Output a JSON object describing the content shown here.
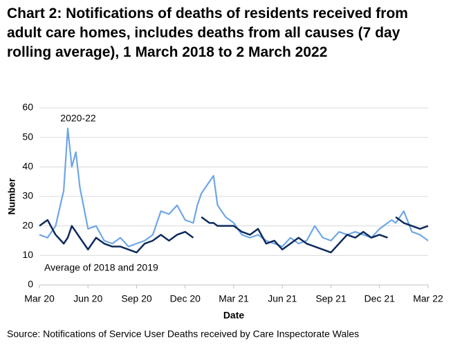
{
  "chart_data": {
    "type": "line",
    "title": "Chart 2: Notifications of deaths of residents received from adult care homes, includes deaths from all causes (7 day rolling average), 1 March 2018 to 2 March 2022",
    "x_label": "Date",
    "y_label": "Number",
    "source": "Source: Notifications of Service User Deaths received by Care Inspectorate Wales",
    "annotations": [
      "2020-22",
      "Average of 2018 and 2019"
    ],
    "x": [
      0,
      0.5,
      1,
      1.5,
      1.75,
      2,
      2.25,
      2.5,
      3,
      3.5,
      4,
      4.5,
      5,
      5.5,
      6,
      6.5,
      7,
      7.5,
      8,
      8.5,
      9,
      9.5,
      9.75,
      10,
      10.5,
      10.75,
      11,
      11.5,
      12,
      12.5,
      13,
      13.5,
      14,
      14.5,
      15,
      15.5,
      16,
      16.5,
      17,
      17.5,
      18,
      18.5,
      19,
      19.5,
      20,
      20.5,
      21,
      21.5,
      21.75,
      22,
      22.5,
      23,
      23.5,
      24
    ],
    "series": [
      {
        "name": "2020-22",
        "color": "#6ea6e6",
        "values": [
          17,
          16,
          20,
          32,
          53,
          40,
          45,
          33,
          19,
          20,
          15,
          14,
          16,
          13,
          14,
          15,
          17,
          25,
          24,
          27,
          22,
          21,
          27,
          31,
          35,
          37,
          27,
          23,
          21,
          17,
          16,
          17,
          15,
          14,
          13,
          16,
          14,
          15,
          20,
          16,
          15,
          18,
          17,
          18,
          17,
          16,
          19,
          21,
          22,
          21,
          25,
          18,
          17,
          15
        ]
      },
      {
        "name": "Average of 2018 and 2019",
        "color": "#0d2a5c",
        "values": [
          20,
          22,
          17,
          14,
          16,
          20,
          18,
          16,
          12,
          16,
          14,
          13,
          13,
          12,
          11,
          14,
          15,
          17,
          15,
          17,
          18,
          16,
          null,
          23,
          21,
          21,
          20,
          20,
          20,
          18,
          17,
          19,
          14,
          15,
          12,
          14,
          16,
          14,
          13,
          12,
          11,
          14,
          17,
          16,
          18,
          16,
          17,
          16,
          null,
          23,
          21,
          20,
          19,
          20
        ]
      }
    ],
    "xlim": [
      0,
      24
    ],
    "xticks": [
      {
        "value": 0,
        "label": "Mar 20"
      },
      {
        "value": 3,
        "label": "Jun 20"
      },
      {
        "value": 6,
        "label": "Sep 20"
      },
      {
        "value": 9,
        "label": "Dec 20"
      },
      {
        "value": 12,
        "label": "Mar 21"
      },
      {
        "value": 15,
        "label": "Jun 21"
      },
      {
        "value": 18,
        "label": "Sep 21"
      },
      {
        "value": 21,
        "label": "Dec 21"
      },
      {
        "value": 24,
        "label": "Mar 22"
      }
    ],
    "ylim": [
      0,
      60
    ],
    "yticks": [
      0,
      10,
      20,
      30,
      40,
      50,
      60
    ],
    "grid": true
  }
}
